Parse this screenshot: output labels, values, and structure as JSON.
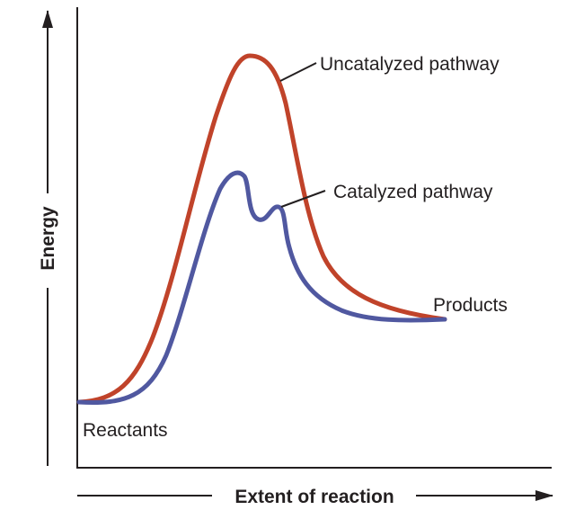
{
  "diagram": {
    "y_axis_label": "Energy",
    "x_axis_label": "Extent of reaction",
    "labels": {
      "uncatalyzed": "Uncatalyzed pathway",
      "catalyzed": "Catalyzed pathway",
      "products": "Products",
      "reactants": "Reactants"
    },
    "colors": {
      "uncatalyzed": "#c0432a",
      "catalyzed": "#5058a0",
      "axes": "#231f20"
    }
  }
}
